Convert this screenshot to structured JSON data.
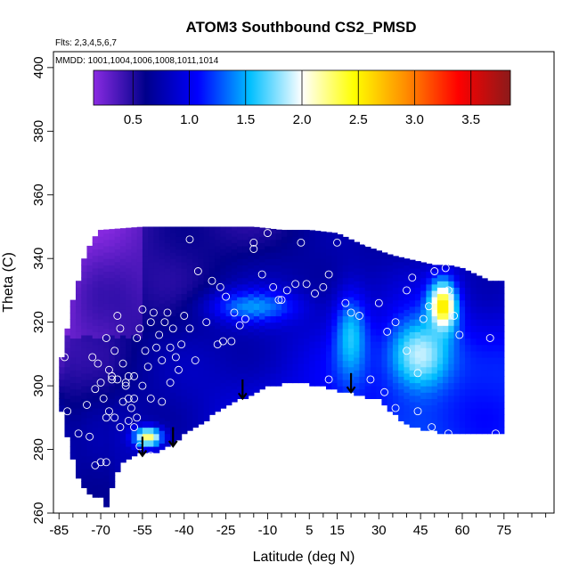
{
  "chart_data": {
    "type": "heatmap",
    "title": "ATOM3 Southbound CS2_PMSD",
    "notes": {
      "flights": "Flts: 2,3,4,5,6,7",
      "dates": "MMDD: 1001,1004,1006,1008,1011,1014"
    },
    "xlabel": "Latitude (deg N)",
    "ylabel": "Theta (C)",
    "xlim": [
      -87,
      93
    ],
    "ylim": [
      260,
      405
    ],
    "x_ticks": [
      -85,
      -70,
      -55,
      -40,
      -25,
      -10,
      5,
      15,
      30,
      45,
      60,
      75
    ],
    "y_ticks": [
      260,
      280,
      300,
      320,
      340,
      360,
      380,
      400
    ],
    "colorbar": {
      "range": [
        0.15,
        3.85
      ],
      "ticks": [
        0.5,
        1.0,
        1.5,
        2.0,
        2.5,
        3.0,
        3.5
      ],
      "tick_labels": [
        "0.5",
        "1.0",
        "1.5",
        "2.0",
        "2.5",
        "3.0",
        "3.5"
      ],
      "colors": [
        "#8a2be2",
        "#00008b",
        "#0000ff",
        "#00bfff",
        "#ffffff",
        "#ffff00",
        "#ff8c00",
        "#ff0000",
        "#8b1a1a"
      ]
    },
    "field": {
      "upper_boundary": [
        [
          -84,
          309
        ],
        [
          -82,
          318
        ],
        [
          -80,
          327
        ],
        [
          -78,
          333
        ],
        [
          -76,
          340
        ],
        [
          -74,
          344
        ],
        [
          -72,
          347
        ],
        [
          -70,
          349
        ],
        [
          -55,
          350
        ],
        [
          -40,
          350
        ],
        [
          -25,
          350
        ],
        [
          -15,
          350
        ],
        [
          -5,
          349
        ],
        [
          5,
          349
        ],
        [
          15,
          348
        ],
        [
          25,
          344
        ],
        [
          35,
          341
        ],
        [
          45,
          339
        ],
        [
          50,
          338
        ],
        [
          55,
          338
        ],
        [
          60,
          337
        ],
        [
          65,
          335
        ],
        [
          70,
          333
        ],
        [
          72,
          333
        ]
      ],
      "lower_boundary": [
        [
          -84,
          292
        ],
        [
          -82,
          284
        ],
        [
          -80,
          277
        ],
        [
          -78,
          271
        ],
        [
          -76,
          268
        ],
        [
          -73,
          266
        ],
        [
          -70,
          265
        ],
        [
          -68,
          262
        ],
        [
          -67,
          262
        ],
        [
          -66,
          268
        ],
        [
          -65,
          272
        ],
        [
          -62,
          276
        ],
        [
          -60,
          277
        ],
        [
          -56,
          279
        ],
        [
          -52,
          279
        ],
        [
          -48,
          280
        ],
        [
          -44,
          282
        ],
        [
          -40,
          285
        ],
        [
          -35,
          288
        ],
        [
          -30,
          291
        ],
        [
          -25,
          294
        ],
        [
          -20,
          296
        ],
        [
          -15,
          298
        ],
        [
          -10,
          300
        ],
        [
          -5,
          301
        ],
        [
          5,
          301
        ],
        [
          10,
          300
        ],
        [
          15,
          299
        ],
        [
          20,
          298
        ],
        [
          25,
          297
        ],
        [
          30,
          296
        ],
        [
          35,
          292
        ],
        [
          40,
          288
        ],
        [
          45,
          287
        ],
        [
          50,
          286
        ],
        [
          55,
          285
        ],
        [
          60,
          285
        ],
        [
          65,
          285
        ],
        [
          72,
          285
        ]
      ],
      "hot_spots": [
        {
          "lat": 53,
          "theta": 325,
          "value": 2.6,
          "spread_lat": 5,
          "spread_theta": 8
        },
        {
          "lat": -53,
          "theta": 284,
          "value": 2.3,
          "spread_lat": 5,
          "spread_theta": 3
        },
        {
          "lat": 45,
          "theta": 310,
          "value": 1.9,
          "spread_lat": 12,
          "spread_theta": 12
        },
        {
          "lat": 20,
          "theta": 315,
          "value": 1.6,
          "spread_lat": 6,
          "spread_theta": 14
        },
        {
          "lat": -15,
          "theta": 325,
          "value": 1.45,
          "spread_lat": 15,
          "spread_theta": 5
        }
      ],
      "base_value_model": "cool purple-dark blue in the south and upper layers, brighter blue toward the north and near the lower edge"
    },
    "observation_points": [
      [
        -83,
        309
      ],
      [
        -82,
        292
      ],
      [
        -78,
        285
      ],
      [
        -75,
        294
      ],
      [
        -73,
        309
      ],
      [
        -72,
        299
      ],
      [
        -71,
        307
      ],
      [
        -70,
        301
      ],
      [
        -69,
        296
      ],
      [
        -68,
        315
      ],
      [
        -67,
        305
      ],
      [
        -66,
        302
      ],
      [
        -65,
        311
      ],
      [
        -64,
        322
      ],
      [
        -63,
        318
      ],
      [
        -62,
        307
      ],
      [
        -61,
        300
      ],
      [
        -60,
        296
      ],
      [
        -59,
        293
      ],
      [
        -58,
        303
      ],
      [
        -57,
        315
      ],
      [
        -56,
        318
      ],
      [
        -55,
        324
      ],
      [
        -54,
        311
      ],
      [
        -53,
        306
      ],
      [
        -52,
        320
      ],
      [
        -51,
        323
      ],
      [
        -50,
        312
      ],
      [
        -49,
        316
      ],
      [
        -48,
        308
      ],
      [
        -47,
        320
      ],
      [
        -46,
        323
      ],
      [
        -45,
        312
      ],
      [
        -44,
        318
      ],
      [
        -43,
        309
      ],
      [
        -41,
        313
      ],
      [
        -40,
        322
      ],
      [
        -38,
        346
      ],
      [
        -36,
        308
      ],
      [
        -55,
        300
      ],
      [
        -57,
        290
      ],
      [
        -60,
        289
      ],
      [
        -63,
        287
      ],
      [
        -65,
        290
      ],
      [
        -67,
        292
      ],
      [
        -70,
        276
      ],
      [
        -72,
        275
      ],
      [
        -74,
        284
      ],
      [
        -68,
        276
      ],
      [
        -56,
        281
      ],
      [
        -52,
        278
      ],
      [
        -61,
        301
      ],
      [
        -64,
        302
      ],
      [
        -66,
        303
      ],
      [
        -30,
        333
      ],
      [
        -27,
        331
      ],
      [
        -25,
        328
      ],
      [
        -22,
        323
      ],
      [
        -20,
        319
      ],
      [
        -18,
        321
      ],
      [
        -15,
        343
      ],
      [
        -12,
        335
      ],
      [
        -10,
        348
      ],
      [
        -8,
        331
      ],
      [
        -6,
        327
      ],
      [
        -3,
        330
      ],
      [
        0,
        332
      ],
      [
        2,
        345
      ],
      [
        4,
        332
      ],
      [
        7,
        329
      ],
      [
        10,
        331
      ],
      [
        12,
        335
      ],
      [
        15,
        345
      ],
      [
        18,
        326
      ],
      [
        20,
        323
      ],
      [
        23,
        322
      ],
      [
        26,
        345
      ],
      [
        30,
        326
      ],
      [
        33,
        317
      ],
      [
        36,
        320
      ],
      [
        40,
        330
      ],
      [
        42,
        334
      ],
      [
        46,
        321
      ],
      [
        48,
        325
      ],
      [
        50,
        336
      ],
      [
        54,
        337
      ],
      [
        55,
        330
      ],
      [
        57,
        322
      ],
      [
        59,
        316
      ],
      [
        63,
        338
      ],
      [
        70,
        315
      ],
      [
        72,
        285
      ],
      [
        -23,
        314
      ],
      [
        -15,
        345
      ],
      [
        -5,
        327
      ],
      [
        12,
        302
      ],
      [
        27,
        302
      ],
      [
        32,
        298
      ],
      [
        36,
        293
      ],
      [
        38,
        287
      ],
      [
        44,
        292
      ],
      [
        49,
        287
      ],
      [
        55,
        285
      ],
      [
        40,
        311
      ],
      [
        44,
        304
      ],
      [
        -35,
        336
      ],
      [
        -38,
        318
      ],
      [
        -32,
        320
      ],
      [
        -28,
        313
      ],
      [
        -26,
        314
      ],
      [
        -60,
        303
      ],
      [
        -45,
        301
      ],
      [
        -42,
        305
      ],
      [
        -48,
        295
      ],
      [
        -52,
        296
      ],
      [
        -58,
        296
      ],
      [
        -62,
        295
      ],
      [
        -68,
        290
      ],
      [
        -58,
        287
      ]
    ],
    "arrows": [
      {
        "lat": -55,
        "theta_top": 284,
        "theta_tip": 278
      },
      {
        "lat": -44,
        "theta_top": 287,
        "theta_tip": 281
      },
      {
        "lat": -19,
        "theta_top": 302,
        "theta_tip": 296
      },
      {
        "lat": 20,
        "theta_top": 304,
        "theta_tip": 298
      }
    ]
  }
}
